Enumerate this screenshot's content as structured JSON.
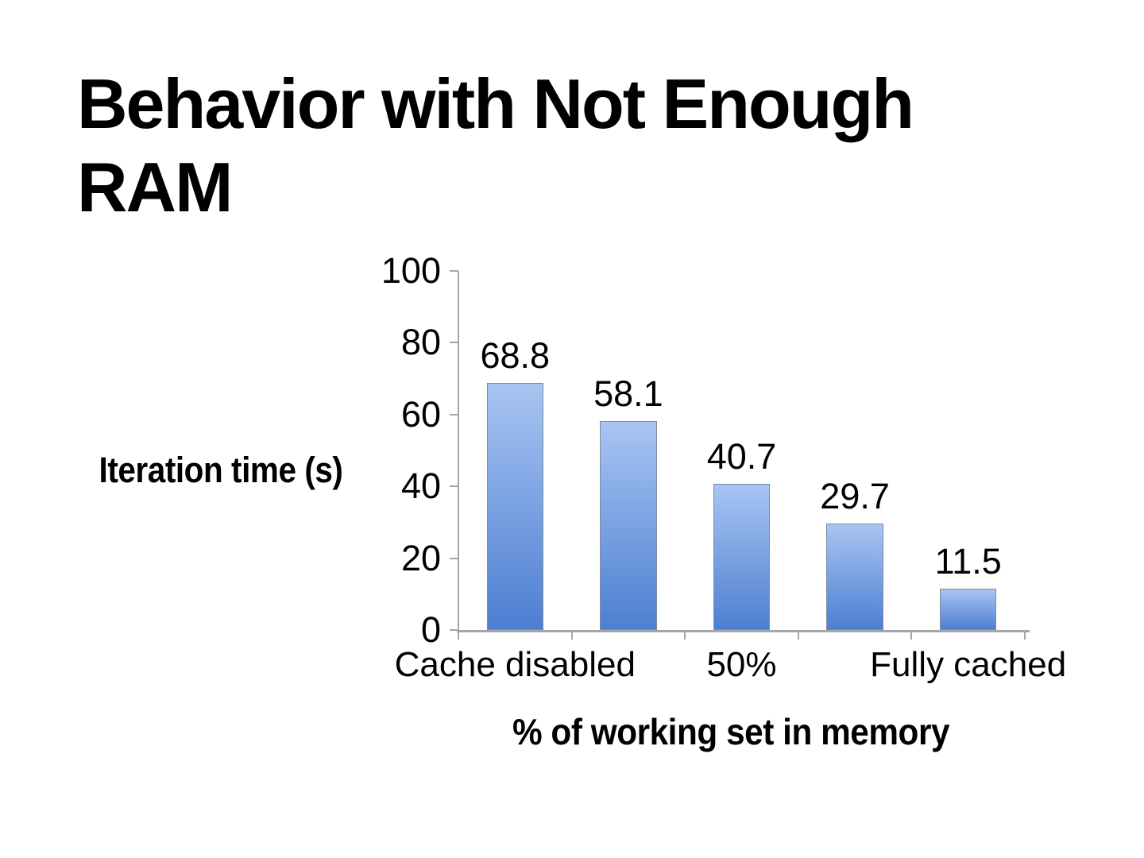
{
  "slide": {
    "title": "Behavior with Not Enough RAM",
    "background_color": "#ffffff"
  },
  "chart_data": {
    "type": "bar",
    "title": "",
    "ylabel": "Iteration time (s)",
    "xlabel": "% of working set in memory",
    "ylim": [
      0,
      100
    ],
    "yticks": [
      0,
      20,
      40,
      60,
      80,
      100
    ],
    "values": [
      68.8,
      58.1,
      40.7,
      29.7,
      11.5
    ],
    "value_labels": [
      "68.8",
      "58.1",
      "40.7",
      "29.7",
      "11.5"
    ],
    "x_tick_labels": [
      {
        "text": "Cache disabled",
        "bar_index": 0
      },
      {
        "text": "50%",
        "bar_index": 2
      },
      {
        "text": "Fully cached",
        "bar_index": 4
      }
    ],
    "grid": "off",
    "legend": "none",
    "colors": {
      "bar_gradient_top": "#a8c5f2",
      "bar_gradient_bottom": "#4d7fd2",
      "bar_border": "#7f8c9b",
      "axis": "#a6a6a6",
      "text": "#000000"
    }
  }
}
